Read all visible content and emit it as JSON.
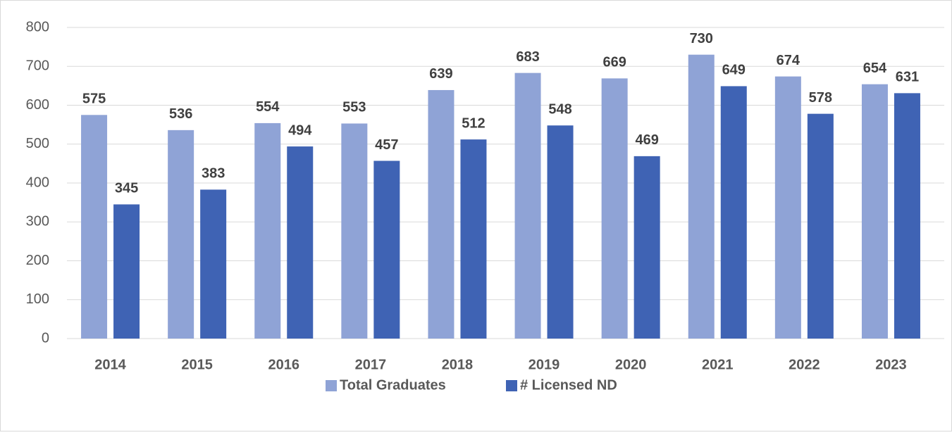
{
  "chart_data": {
    "type": "bar",
    "categories": [
      "2014",
      "2015",
      "2016",
      "2017",
      "2018",
      "2019",
      "2020",
      "2021",
      "2022",
      "2023"
    ],
    "series": [
      {
        "name": "Total Graduates",
        "color": "#8fa3d6",
        "values": [
          575,
          536,
          554,
          553,
          639,
          683,
          669,
          730,
          674,
          654
        ]
      },
      {
        "name": "# Licensed ND",
        "color": "#3f63b4",
        "values": [
          345,
          383,
          494,
          457,
          512,
          548,
          469,
          649,
          578,
          631
        ]
      }
    ],
    "ylim": [
      0,
      800
    ],
    "yticks": [
      0,
      100,
      200,
      300,
      400,
      500,
      600,
      700,
      800
    ],
    "grid": true,
    "legend": "bottom"
  }
}
